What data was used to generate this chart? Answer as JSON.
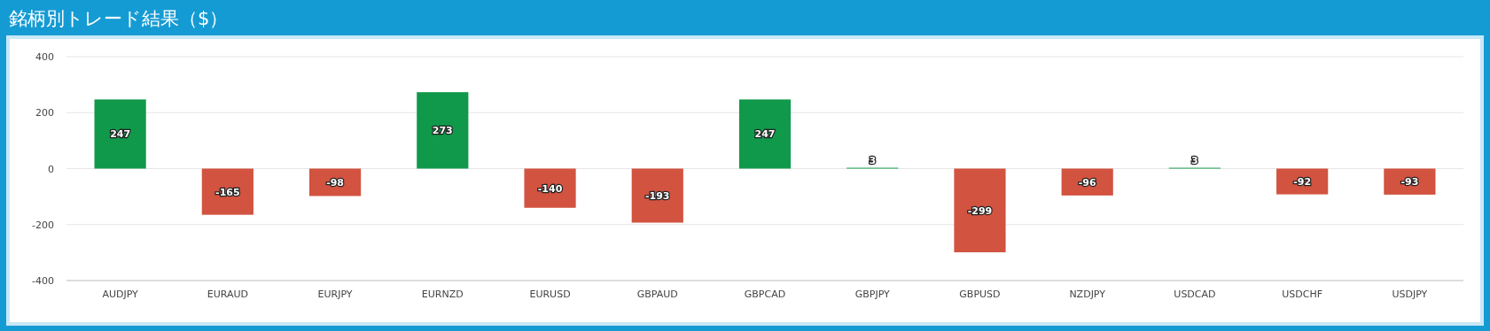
{
  "chart_data": {
    "type": "bar",
    "title": "銘柄別トレード結果（$）",
    "categories": [
      "AUDJPY",
      "EURAUD",
      "EURJPY",
      "EURNZD",
      "EURUSD",
      "GBPAUD",
      "GBPCAD",
      "GBPJPY",
      "GBPUSD",
      "NZDJPY",
      "USDCAD",
      "USDCHF",
      "USDJPY"
    ],
    "values": [
      247,
      -165,
      -98,
      273,
      -140,
      -193,
      247,
      3,
      -299,
      -96,
      3,
      -92,
      -93
    ],
    "colors": [
      "#10994a",
      "#d25340",
      "#d25340",
      "#10994a",
      "#d25340",
      "#d25340",
      "#10994a",
      "#10994a",
      "#d25340",
      "#d25340",
      "#10994a",
      "#d25340",
      "#d25340"
    ],
    "ylim": [
      -400,
      400
    ],
    "yticks": [
      -400,
      -200,
      0,
      200,
      400
    ],
    "grid": "y",
    "data_labels": true
  }
}
